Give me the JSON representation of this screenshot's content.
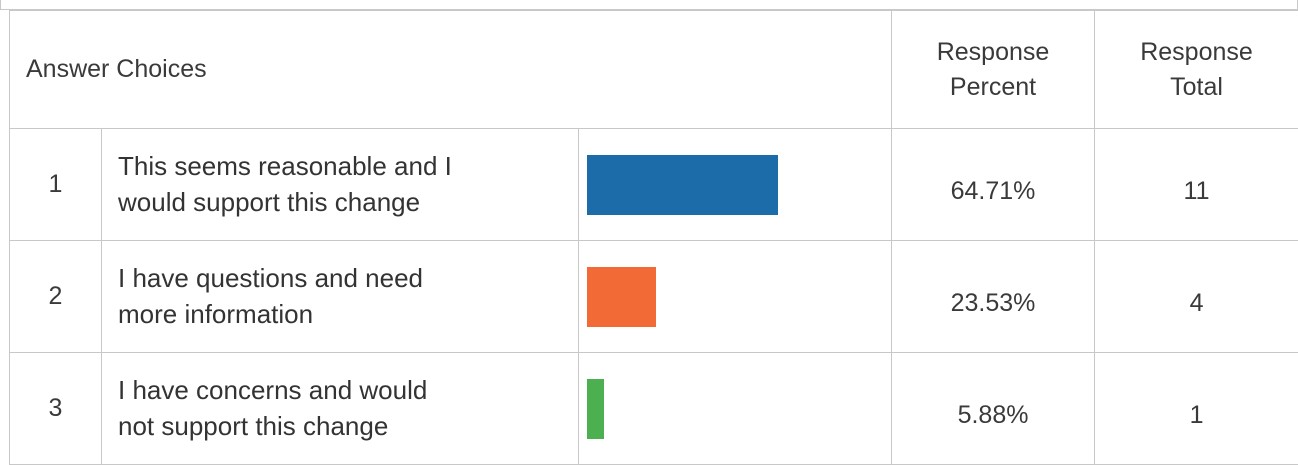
{
  "table": {
    "headers": {
      "answer_choices": "Answer Choices",
      "response_percent_line1": "Response",
      "response_percent_line2": "Percent",
      "response_total_line1": "Response",
      "response_total_line2": "Total"
    },
    "rows": [
      {
        "number": "1",
        "choice_line1": "This seems reasonable and I",
        "choice_line2": "would support this change",
        "percent": "64.71%",
        "total": "11",
        "fraction": 0.6471,
        "bar_color": "#1b6ca8"
      },
      {
        "number": "2",
        "choice_line1": "I have questions and need",
        "choice_line2": "more information",
        "percent": "23.53%",
        "total": "4",
        "fraction": 0.2353,
        "bar_color": "#f26b36"
      },
      {
        "number": "3",
        "choice_line1": "I have concerns and would",
        "choice_line2": "not support this change",
        "percent": "5.88%",
        "total": "1",
        "fraction": 0.0588,
        "bar_color": "#4caf50"
      }
    ]
  }
}
